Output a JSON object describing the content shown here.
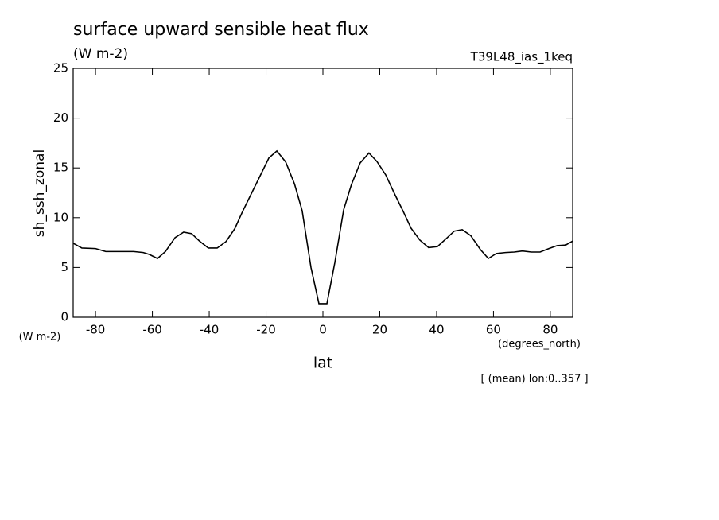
{
  "chart_data": {
    "type": "line",
    "title": "surface upward sensible heat flux",
    "subtitle": "(W m-2)",
    "run_label": "T39L48_ias_1keq",
    "y_label": "sh_ssh_zonal",
    "y_unit": "(W m-2)",
    "x_label": "lat",
    "x_unit": "(degrees_north)",
    "annotation": "[ (mean) lon:0..357 ]",
    "xlim": [
      -87.86,
      87.86
    ],
    "ylim": [
      0,
      25
    ],
    "xticks": [
      -80,
      -60,
      -40,
      -20,
      0,
      20,
      40,
      60,
      80
    ],
    "yticks": [
      0,
      5,
      10,
      15,
      20,
      25
    ],
    "x": [
      -87.86,
      -84.8,
      -80,
      -76.4,
      -70.2,
      -66.6,
      -63.2,
      -61,
      -58.2,
      -55.4,
      -52,
      -49,
      -46.2,
      -43.4,
      -40.3,
      -37.2,
      -34.1,
      -31,
      -28.3,
      -25.2,
      -22.1,
      -19,
      -16.2,
      -13.1,
      -10,
      -7.3,
      -4.2,
      -1.4,
      1.4,
      4.2,
      7.3,
      10,
      13.1,
      16.2,
      19,
      22.1,
      25.2,
      28.3,
      31,
      34.1,
      37.2,
      40.3,
      43.4,
      46.2,
      49,
      52,
      55.4,
      58.2,
      61,
      64.2,
      67.3,
      70.2,
      73.3,
      76.4,
      79.5,
      82.4,
      85.4,
      87.86
    ],
    "series": [
      {
        "name": "sh_ssh_zonal",
        "color": "#000000",
        "values": [
          7.43,
          6.95,
          6.9,
          6.6,
          6.6,
          6.6,
          6.5,
          6.3,
          5.9,
          6.6,
          8.0,
          8.55,
          8.4,
          7.65,
          6.95,
          6.95,
          7.6,
          8.9,
          10.6,
          12.4,
          14.2,
          16.0,
          16.7,
          15.6,
          13.4,
          10.7,
          5.0,
          1.36,
          1.36,
          5.5,
          10.8,
          13.3,
          15.5,
          16.5,
          15.65,
          14.3,
          12.4,
          10.6,
          8.95,
          7.75,
          7.0,
          7.1,
          7.9,
          8.65,
          8.8,
          8.2,
          6.8,
          5.9,
          6.4,
          6.5,
          6.55,
          6.65,
          6.55,
          6.55,
          6.9,
          7.2,
          7.25,
          7.65
        ]
      }
    ]
  }
}
